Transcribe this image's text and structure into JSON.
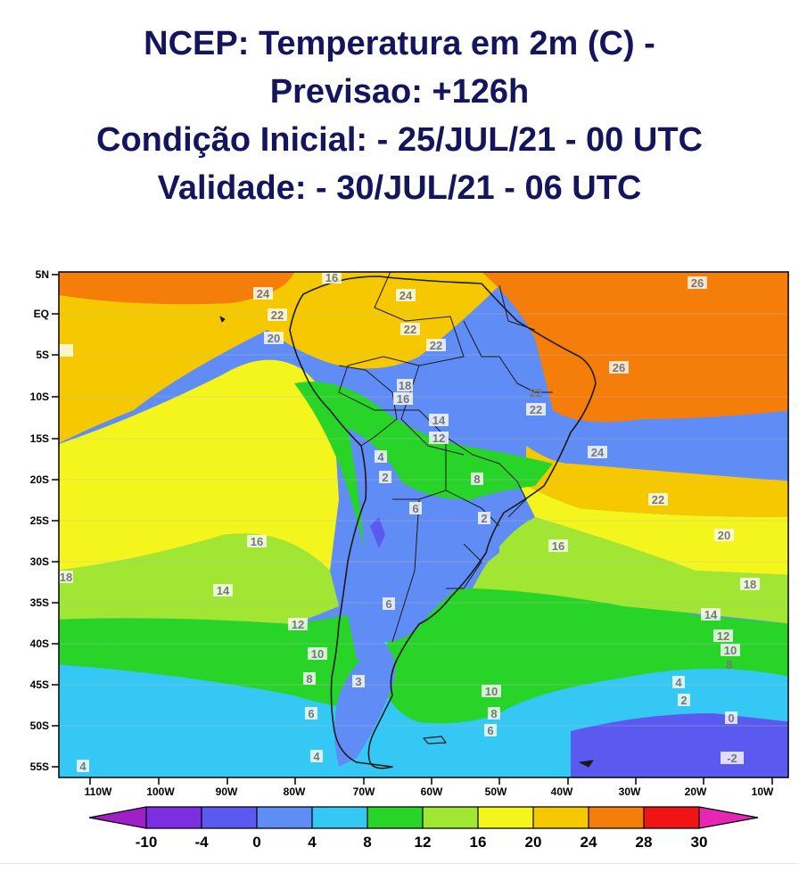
{
  "title_lines": [
    "NCEP: Temperatura em 2m (C) -",
    "Previsao: +126h",
    "Condição Inicial: - 25/JUL/21 - 00 UTC",
    "Validade: - 30/JUL/21 - 06 UTC"
  ],
  "lat_labels": [
    "5N",
    "EQ",
    "5S",
    "10S",
    "15S",
    "20S",
    "25S",
    "30S",
    "35S",
    "40S",
    "45S",
    "50S",
    "55S"
  ],
  "lon_labels": [
    "110W",
    "100W",
    "90W",
    "80W",
    "70W",
    "60W",
    "50W",
    "40W",
    "30W",
    "20W",
    "10W"
  ],
  "colorbar": {
    "labels": [
      "-10",
      "-4",
      "0",
      "4",
      "8",
      "12",
      "16",
      "20",
      "24",
      "28",
      "30"
    ],
    "colors": [
      "#a020c8",
      "#7b2fe0",
      "#5a5af0",
      "#5f8cf5",
      "#36c8f5",
      "#28d428",
      "#a0e632",
      "#f5f51e",
      "#f5c800",
      "#f57d0a",
      "#f01414",
      "#e626b4"
    ]
  },
  "contour_labels": [
    "16",
    "24",
    "22",
    "20",
    "24",
    "22",
    "22",
    "22",
    "26",
    "26",
    "16",
    "18",
    "14",
    "12",
    "22",
    "24",
    "4",
    "2",
    "6",
    "8",
    "2",
    "24",
    "22",
    "20",
    "16",
    "16",
    "18",
    "14",
    "12",
    "6",
    "10",
    "8",
    "6",
    "4",
    "3",
    "10",
    "8",
    "6",
    "14",
    "12",
    "10",
    "8",
    "4",
    "2",
    "0",
    "-2",
    "18",
    "4"
  ]
}
